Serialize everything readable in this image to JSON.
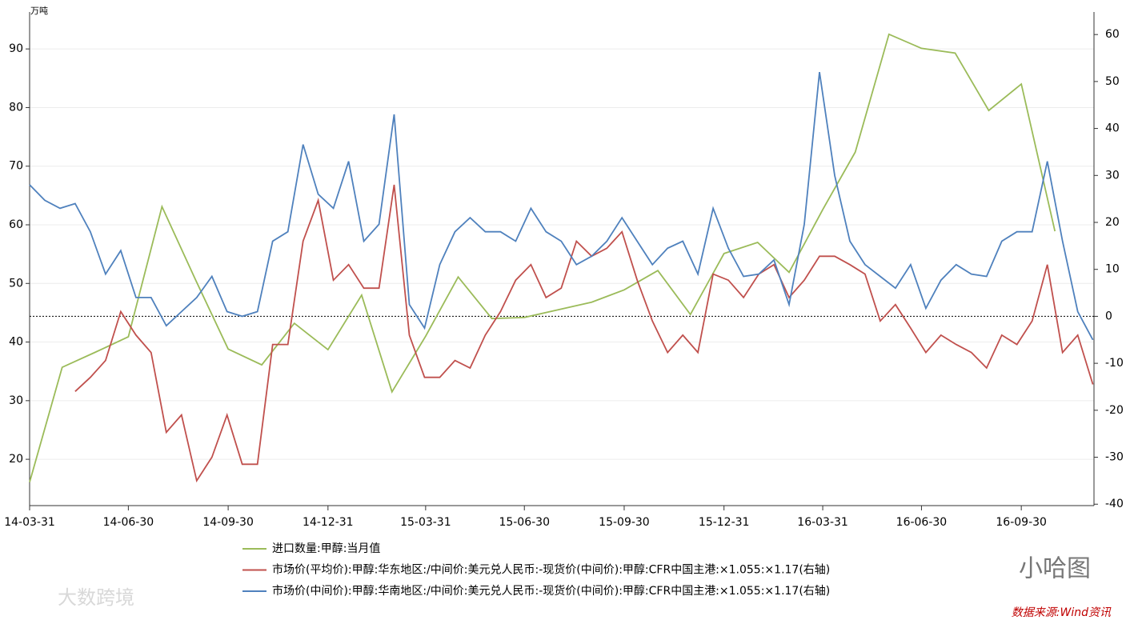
{
  "chart_data": {
    "type": "line",
    "unit_label": "万吨",
    "xlim": [
      "14-03-31",
      "16-12-06"
    ],
    "xticks": [
      "14-03-31",
      "14-06-30",
      "14-09-30",
      "14-12-31",
      "15-03-31",
      "15-06-30",
      "15-09-30",
      "15-12-31",
      "16-03-31",
      "16-06-30",
      "16-09-30"
    ],
    "ylim": [
      12.1,
      96.3
    ],
    "yticks": [
      20,
      30,
      40,
      50,
      60,
      70,
      80,
      90
    ],
    "y2lim": [
      -40.3,
      64.8
    ],
    "y2ticks": [
      -40,
      -30,
      -20,
      -10,
      0,
      10,
      20,
      30,
      40,
      50,
      60
    ],
    "y2_reference_line": 0,
    "grid": true,
    "legend": "bottom",
    "series": [
      {
        "name": "进口数量:甲醇:当月值",
        "color": "#9bbb59",
        "axis": "y",
        "x": [
          "14-03-31",
          "14-04-30",
          "14-05-31",
          "14-06-30",
          "14-07-31",
          "14-08-31",
          "14-09-30",
          "14-10-31",
          "14-11-30",
          "14-12-31",
          "15-01-31",
          "15-02-28",
          "15-03-31",
          "15-04-30",
          "15-05-31",
          "15-06-30",
          "15-07-31",
          "15-08-31",
          "15-09-30",
          "15-10-31",
          "15-11-30",
          "15-12-31",
          "16-01-31",
          "16-02-29",
          "16-03-31",
          "16-04-30",
          "16-05-31",
          "16-06-30",
          "16-07-31",
          "16-08-31",
          "16-09-30",
          "16-10-31"
        ],
        "values": [
          16.1,
          35.7,
          38.3,
          40.9,
          63.1,
          50.6,
          38.8,
          36.1,
          43.2,
          38.7,
          48.0,
          31.5,
          41.0,
          51.1,
          44.0,
          44.2,
          45.5,
          46.8,
          48.9,
          52.2,
          44.7,
          55.1,
          57.0,
          51.9,
          62.6,
          72.4,
          92.5,
          90.1,
          89.3,
          79.5,
          84.0,
          58.9
        ]
      },
      {
        "name": "市场价(平均价):甲醇:华东地区:/中间价:美元兑人民币:-现货价(中间价):甲醇:CFR中国主港:×1.055:×1.17(右轴)",
        "color": "#c0504d",
        "axis": "y2",
        "x": [
          "14-03-31",
          "14-04-14",
          "14-04-28",
          "14-05-12",
          "14-05-26",
          "14-06-09",
          "14-06-23",
          "14-07-07",
          "14-07-21",
          "14-08-04",
          "14-08-18",
          "14-09-01",
          "14-09-15",
          "14-09-29",
          "14-10-13",
          "14-10-27",
          "14-11-10",
          "14-11-24",
          "14-12-08",
          "14-12-22",
          "15-01-05",
          "15-01-19",
          "15-02-02",
          "15-02-16",
          "15-03-02",
          "15-03-16",
          "15-03-30",
          "15-04-13",
          "15-04-27",
          "15-05-11",
          "15-05-25",
          "15-06-08",
          "15-06-22",
          "15-07-06",
          "15-07-20",
          "15-08-03",
          "15-08-17",
          "15-08-31",
          "15-09-14",
          "15-09-28",
          "15-10-12",
          "15-10-26",
          "15-11-09",
          "15-11-23",
          "15-12-07",
          "15-12-21",
          "16-01-04",
          "16-01-18",
          "16-02-01",
          "16-02-15",
          "16-02-29",
          "16-03-14",
          "16-03-28",
          "16-04-11",
          "16-04-25",
          "16-05-09",
          "16-05-23",
          "16-06-06",
          "16-06-20",
          "16-07-04",
          "16-07-18",
          "16-08-01",
          "16-08-15",
          "16-08-29",
          "16-09-12",
          "16-09-26",
          "16-10-10",
          "16-10-24",
          "16-11-07",
          "16-11-21",
          "16-12-05"
        ],
        "values": [
          null,
          null,
          null,
          -16,
          -13,
          -9.4,
          1,
          -4,
          -7.7,
          -24.7,
          -21,
          -35,
          -30,
          -21,
          -31.5,
          -31.5,
          -6,
          -6,
          16,
          24.7,
          7.7,
          11,
          6,
          6,
          28,
          -4,
          -13,
          -13,
          -9.4,
          -11,
          -4,
          1,
          7.7,
          11,
          4,
          6,
          16,
          12.8,
          14.5,
          18,
          7.7,
          -1,
          -7.7,
          -4,
          -7.7,
          9,
          7.7,
          4,
          9,
          11,
          4,
          7.7,
          12.8,
          12.8,
          11,
          9,
          -1,
          2.5,
          -2.5,
          -7.7,
          -4,
          -6,
          -7.7,
          -11,
          -4,
          -6,
          -1,
          11,
          -7.7,
          -4,
          -14.5
        ]
      },
      {
        "name": "市场价(中间价):甲醇:华南地区:/中间价:美元兑人民币:-现货价(中间价):甲醇:CFR中国主港:×1.055:×1.17(右轴)",
        "color": "#4f81bd",
        "axis": "y2",
        "x": [
          "14-03-31",
          "14-04-14",
          "14-04-28",
          "14-05-12",
          "14-05-26",
          "14-06-09",
          "14-06-23",
          "14-07-07",
          "14-07-21",
          "14-08-04",
          "14-08-18",
          "14-09-01",
          "14-09-15",
          "14-09-29",
          "14-10-13",
          "14-10-27",
          "14-11-10",
          "14-11-24",
          "14-12-08",
          "14-12-22",
          "15-01-05",
          "15-01-19",
          "15-02-02",
          "15-02-16",
          "15-03-02",
          "15-03-16",
          "15-03-30",
          "15-04-13",
          "15-04-27",
          "15-05-11",
          "15-05-25",
          "15-06-08",
          "15-06-22",
          "15-07-06",
          "15-07-20",
          "15-08-03",
          "15-08-17",
          "15-08-31",
          "15-09-14",
          "15-09-28",
          "15-10-12",
          "15-10-26",
          "15-11-09",
          "15-11-23",
          "15-12-07",
          "15-12-21",
          "16-01-04",
          "16-01-18",
          "16-02-01",
          "16-02-15",
          "16-02-29",
          "16-03-14",
          "16-03-28",
          "16-04-11",
          "16-04-25",
          "16-05-09",
          "16-05-23",
          "16-06-06",
          "16-06-20",
          "16-07-04",
          "16-07-18",
          "16-08-01",
          "16-08-15",
          "16-08-29",
          "16-09-12",
          "16-09-26",
          "16-10-10",
          "16-10-24",
          "16-11-07",
          "16-11-21",
          "16-12-05"
        ],
        "values": [
          28,
          24.7,
          23,
          24,
          18,
          9,
          14,
          4,
          4,
          -2,
          1,
          4,
          8.5,
          1,
          0,
          1,
          16,
          18,
          36.6,
          26,
          23,
          33,
          16,
          19.6,
          43,
          2.5,
          -2.5,
          11,
          18,
          21,
          18,
          18,
          16,
          23,
          18,
          16,
          11,
          12.8,
          16,
          21,
          16,
          11,
          14.5,
          16,
          9,
          23,
          14.5,
          8.5,
          9,
          12,
          2.5,
          19.6,
          52,
          30,
          16,
          11,
          8.5,
          6,
          11,
          1.7,
          7.7,
          11,
          9,
          8.5,
          16,
          18,
          18,
          33,
          16,
          1,
          -5
        ]
      }
    ],
    "watermark_logo": "小哈图",
    "watermark_site": "大数跨境",
    "source": "数据来源:Wind资讯"
  }
}
